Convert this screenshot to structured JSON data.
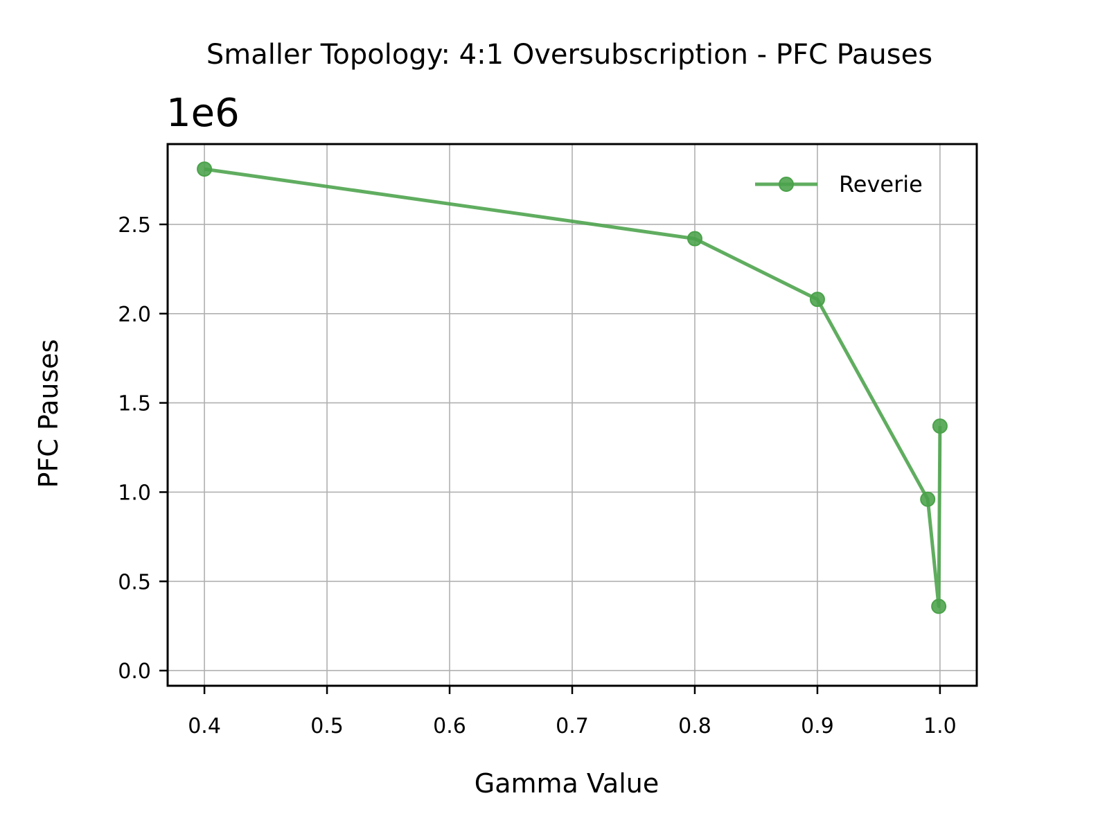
{
  "chart_data": {
    "type": "line",
    "title": "Smaller Topology: 4:1 Oversubscription - PFC Pauses",
    "xlabel": "Gamma Value",
    "ylabel": "PFC Pauses",
    "y_offset_text": "1e6",
    "xlim": [
      0.37,
      1.03
    ],
    "ylim": [
      -0.085,
      2.95
    ],
    "y_scale_factor": 1000000,
    "x_ticks": [
      0.4,
      0.5,
      0.6,
      0.7,
      0.8,
      0.9,
      1.0
    ],
    "x_tick_labels": [
      "0.4",
      "0.5",
      "0.6",
      "0.7",
      "0.8",
      "0.9",
      "1.0"
    ],
    "y_ticks": [
      0.0,
      0.5,
      1.0,
      1.5,
      2.0,
      2.5
    ],
    "y_tick_labels": [
      "0.0",
      "0.5",
      "1.0",
      "1.5",
      "2.0",
      "2.5"
    ],
    "grid": true,
    "legend_position": "top-right",
    "series": [
      {
        "name": "Reverie",
        "color": "#4aa24a",
        "marker": "circle",
        "points": [
          {
            "x": 0.4,
            "y": 2.81
          },
          {
            "x": 0.8,
            "y": 2.42
          },
          {
            "x": 0.9,
            "y": 2.08
          },
          {
            "x": 0.99,
            "y": 0.96
          },
          {
            "x": 0.999,
            "y": 0.36
          },
          {
            "x": 1.0,
            "y": 1.37
          }
        ]
      }
    ]
  }
}
